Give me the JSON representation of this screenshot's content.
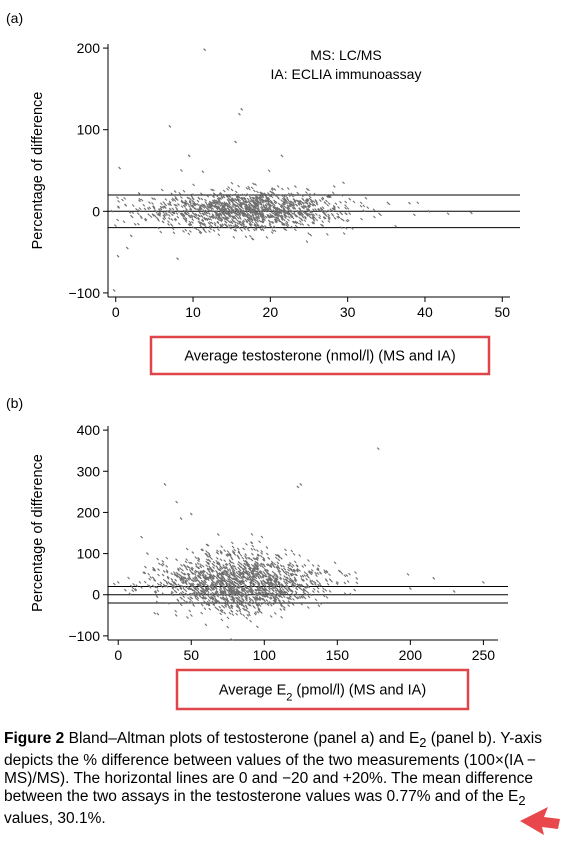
{
  "panel_a": {
    "label": "(a)"
  },
  "panel_b": {
    "label": "(b)"
  },
  "chart_data": [
    {
      "type": "scatter",
      "panel": "a",
      "ylabel": "Percentage of difference",
      "xlabel": "Average testosterone (nmol/l) (MS and IA)",
      "xlim": [
        -1,
        51
      ],
      "ylim": [
        -105,
        205
      ],
      "xticks": [
        0,
        10,
        20,
        30,
        40,
        50
      ],
      "yticks": [
        200,
        100,
        0,
        -100
      ],
      "hlines": [
        20,
        0,
        -20
      ],
      "annotations": [
        "MS: LC/MS",
        "IA: ECLIA immunoassay"
      ],
      "cloud": {
        "x_center": 17,
        "x_spread": 6.5,
        "y_center": 0.8,
        "y_spread": 10,
        "n": 1400
      },
      "points": [
        {
          "x": 11.5,
          "y": 198
        },
        {
          "x": 16.3,
          "y": 125
        },
        {
          "x": 16.0,
          "y": 119
        },
        {
          "x": 7.0,
          "y": 104
        },
        {
          "x": 15.5,
          "y": 85
        },
        {
          "x": 9.5,
          "y": 68
        },
        {
          "x": 21.5,
          "y": 68
        },
        {
          "x": 0.5,
          "y": 53
        },
        {
          "x": 8.5,
          "y": 50
        },
        {
          "x": 0.3,
          "y": -55
        },
        {
          "x": 1.5,
          "y": -45
        },
        {
          "x": 8.0,
          "y": -58
        },
        {
          "x": -0.2,
          "y": -97
        },
        {
          "x": 2.0,
          "y": -30
        },
        {
          "x": 40.5,
          "y": 0
        },
        {
          "x": 46,
          "y": -2
        },
        {
          "x": 43,
          "y": -3
        },
        {
          "x": 38,
          "y": 10
        }
      ]
    },
    {
      "type": "scatter",
      "panel": "b",
      "ylabel": "Percentage of difference",
      "xlabel_parts": [
        "Average E",
        "2",
        " (pmol/l) (MS and IA)"
      ],
      "xlim": [
        -7,
        260
      ],
      "ylim": [
        -110,
        410
      ],
      "xticks": [
        0,
        50,
        100,
        150,
        200,
        250
      ],
      "yticks": [
        400,
        300,
        200,
        100,
        0,
        -100
      ],
      "hlines": [
        20,
        0,
        -20
      ],
      "cloud": {
        "x_center": 82,
        "x_spread": 28,
        "y_center": 30,
        "y_spread": 30,
        "n": 1600
      },
      "points": [
        {
          "x": 178,
          "y": 355
        },
        {
          "x": 125,
          "y": 268
        },
        {
          "x": 123,
          "y": 262
        },
        {
          "x": 32,
          "y": 268
        },
        {
          "x": 40,
          "y": 225
        },
        {
          "x": 50,
          "y": 196
        },
        {
          "x": 43,
          "y": 185
        },
        {
          "x": 16,
          "y": 140
        },
        {
          "x": 20,
          "y": 100
        },
        {
          "x": 216,
          "y": 40
        },
        {
          "x": 230,
          "y": 8
        },
        {
          "x": 250,
          "y": 30
        },
        {
          "x": 200,
          "y": 15
        },
        {
          "x": 25,
          "y": -45
        }
      ]
    }
  ],
  "caption": {
    "figure_label": "Figure 2",
    "parts": [
      " Bland–Altman plots of testosterone (panel a) and E",
      "2",
      " (panel b). Y-axis depicts the % difference between values of the two measurements (100×(IA − MS)/MS). The horizontal lines are 0 and −20 and +20%. The mean difference between the two assays in the testosterone values was 0.77% and of the E",
      "2",
      " values, 30.1%."
    ]
  },
  "colors": {
    "points": "#6e6e6e",
    "highlight_box": "#e0454a",
    "arrow": "#e8474c"
  }
}
